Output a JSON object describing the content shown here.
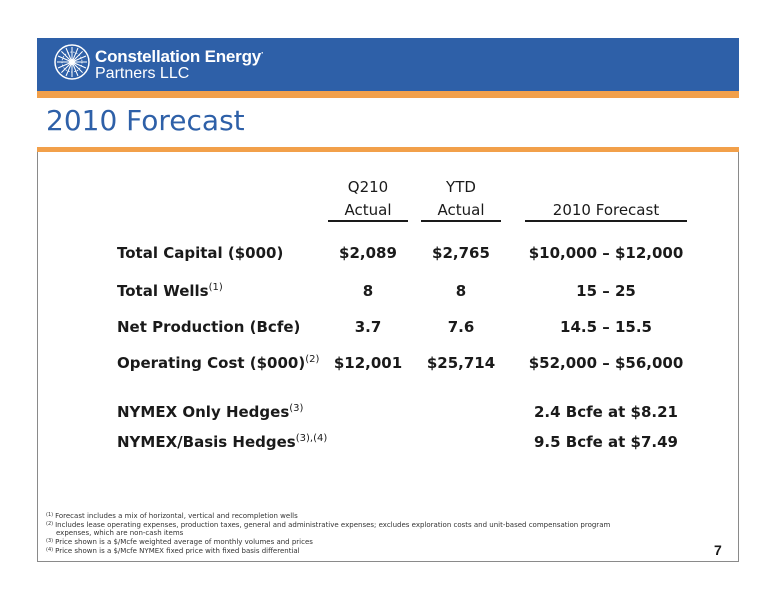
{
  "logo": {
    "name": "Constellation Energy",
    "trademark": "·",
    "sub": "Partners LLC"
  },
  "title": "2010 Forecast",
  "columns": [
    {
      "line1": "Q210",
      "line2": "Actual"
    },
    {
      "line1": "YTD",
      "line2": "Actual"
    },
    {
      "line1": "",
      "line2": "2010 Forecast"
    }
  ],
  "rows": [
    {
      "label": "Total Capital ($000)",
      "note": "",
      "values": [
        "$2,089",
        "$2,765",
        "$10,000 – $12,000"
      ]
    },
    {
      "label": "Total Wells",
      "note": "(1)",
      "values": [
        "8",
        "8",
        "15 – 25"
      ]
    },
    {
      "label": "Net Production (Bcfe)",
      "note": "",
      "values": [
        "3.7",
        "7.6",
        "14.5 – 15.5"
      ]
    },
    {
      "label": "Operating Cost ($000)",
      "note": "(2)",
      "values": [
        "$12,001",
        "$25,714",
        "$52,000 – $56,000"
      ]
    },
    {
      "label": "NYMEX Only Hedges",
      "note": "(3)",
      "values": [
        "",
        "",
        "2.4 Bcfe at $8.21"
      ]
    },
    {
      "label": "NYMEX/Basis Hedges",
      "note": "(3),(4)",
      "values": [
        "",
        "",
        "9.5 Bcfe at $7.49"
      ]
    }
  ],
  "footnotes": [
    {
      "num": "(1)",
      "text": "Forecast includes a mix of horizontal, vertical and recompletion wells"
    },
    {
      "num": "(2)",
      "text": "Includes lease operating expenses, production taxes, general and administrative expenses; excludes exploration costs and unit-based compensation program"
    },
    {
      "num": "",
      "text": "expenses, which are non-cash items"
    },
    {
      "num": "(3)",
      "text": "Price shown is a $/Mcfe weighted average of monthly volumes and prices"
    },
    {
      "num": "(4)",
      "text": "Price shown is a $/Mcfe NYMEX fixed price with fixed basis differential"
    }
  ],
  "page_number": "7",
  "colors": {
    "header_blue": "#2e60a8",
    "accent_orange": "#f2a04a",
    "title_blue": "#2e60a8"
  }
}
